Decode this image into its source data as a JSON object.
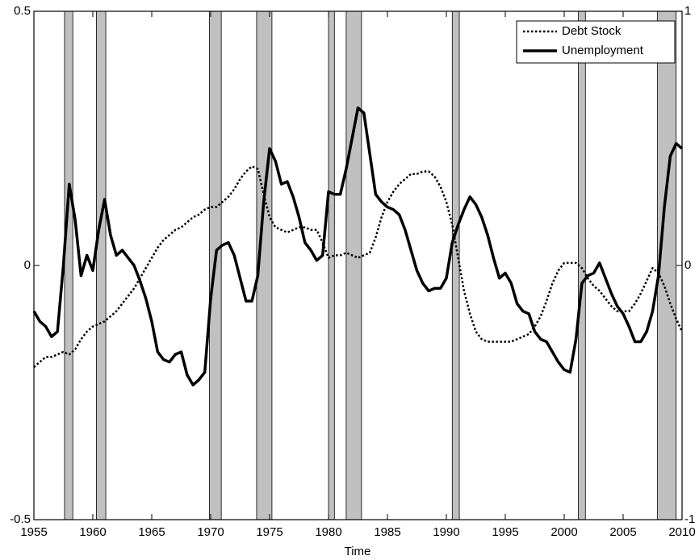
{
  "chart_data": {
    "type": "line",
    "xlabel": "Time",
    "xlim": [
      1955,
      2010
    ],
    "xticks": [
      1955,
      1960,
      1965,
      1970,
      1975,
      1980,
      1985,
      1990,
      1995,
      2000,
      2005,
      2010
    ],
    "ylim": [
      -0.5,
      0.5
    ],
    "yticks": [
      -0.5,
      0,
      0.5
    ],
    "y2lim": [
      -1,
      1
    ],
    "y2ticks": [
      -1,
      0,
      1
    ],
    "legend": "upper right",
    "shade_color": "#c0c0c0",
    "shaded_periods": [
      [
        1957.6,
        1958.3
      ],
      [
        1960.3,
        1961.1
      ],
      [
        1969.9,
        1970.9
      ],
      [
        1973.9,
        1975.2
      ],
      [
        1980.0,
        1980.5
      ],
      [
        1981.5,
        1982.8
      ],
      [
        1990.5,
        1991.1
      ],
      [
        2001.2,
        2001.8
      ],
      [
        2007.9,
        2009.5
      ]
    ],
    "x": [
      1955,
      1955.5,
      1956,
      1956.5,
      1957,
      1957.5,
      1958,
      1958.5,
      1959,
      1959.5,
      1960,
      1960.5,
      1961,
      1961.5,
      1962,
      1962.5,
      1963,
      1963.5,
      1964,
      1964.5,
      1965,
      1965.5,
      1966,
      1966.5,
      1967,
      1967.5,
      1968,
      1968.5,
      1969,
      1969.5,
      1970,
      1970.5,
      1971,
      1971.5,
      1972,
      1972.5,
      1973,
      1973.5,
      1974,
      1974.5,
      1975,
      1975.5,
      1976,
      1976.5,
      1977,
      1977.5,
      1978,
      1978.5,
      1979,
      1979.5,
      1980,
      1980.5,
      1981,
      1981.5,
      1982,
      1982.5,
      1983,
      1983.5,
      1984,
      1984.5,
      1985,
      1985.5,
      1986,
      1986.5,
      1987,
      1987.5,
      1988,
      1988.5,
      1989,
      1989.5,
      1990,
      1990.5,
      1991,
      1991.5,
      1992,
      1992.5,
      1993,
      1993.5,
      1994,
      1994.5,
      1995,
      1995.5,
      1996,
      1996.5,
      1997,
      1997.5,
      1998,
      1998.5,
      1999,
      1999.5,
      2000,
      2000.5,
      2001,
      2001.5,
      2002,
      2002.5,
      2003,
      2003.5,
      2004,
      2004.5,
      2005,
      2005.5,
      2006,
      2006.5,
      2007,
      2007.5,
      2008,
      2008.5,
      2009,
      2009.5,
      2010
    ],
    "series": [
      {
        "name": "Debt Stock",
        "color": "#000000",
        "style": "dotted",
        "width": 2.5,
        "axis": "y2",
        "values": [
          -0.4,
          -0.38,
          -0.36,
          -0.36,
          -0.35,
          -0.34,
          -0.35,
          -0.33,
          -0.29,
          -0.26,
          -0.24,
          -0.23,
          -0.22,
          -0.2,
          -0.18,
          -0.15,
          -0.12,
          -0.09,
          -0.05,
          -0.01,
          0.03,
          0.07,
          0.1,
          0.12,
          0.14,
          0.15,
          0.17,
          0.19,
          0.2,
          0.22,
          0.23,
          0.23,
          0.25,
          0.27,
          0.3,
          0.34,
          0.37,
          0.39,
          0.38,
          0.28,
          0.19,
          0.15,
          0.14,
          0.13,
          0.14,
          0.15,
          0.15,
          0.14,
          0.14,
          0.09,
          0.03,
          0.04,
          0.04,
          0.05,
          0.04,
          0.03,
          0.04,
          0.05,
          0.11,
          0.19,
          0.25,
          0.29,
          0.32,
          0.34,
          0.36,
          0.36,
          0.37,
          0.37,
          0.35,
          0.31,
          0.25,
          0.16,
          0.03,
          -0.1,
          -0.19,
          -0.26,
          -0.29,
          -0.3,
          -0.3,
          -0.3,
          -0.3,
          -0.3,
          -0.29,
          -0.28,
          -0.27,
          -0.24,
          -0.2,
          -0.14,
          -0.07,
          -0.02,
          0.01,
          0.01,
          0.01,
          -0.01,
          -0.05,
          -0.08,
          -0.1,
          -0.13,
          -0.16,
          -0.18,
          -0.18,
          -0.18,
          -0.15,
          -0.11,
          -0.06,
          -0.01,
          -0.03,
          -0.08,
          -0.15,
          -0.21,
          -0.26
        ]
      },
      {
        "name": "Unemployment",
        "color": "#000000",
        "style": "solid",
        "width": 3.5,
        "values": [
          -0.09,
          -0.11,
          -0.12,
          -0.14,
          -0.13,
          0,
          0.16,
          0.09,
          -0.02,
          0.02,
          -0.01,
          0.07,
          0.13,
          0.06,
          0.02,
          0.03,
          0.015,
          0,
          -0.03,
          -0.065,
          -0.11,
          -0.17,
          -0.185,
          -0.19,
          -0.175,
          -0.17,
          -0.215,
          -0.235,
          -0.225,
          -0.21,
          -0.065,
          0.03,
          0.04,
          0.045,
          0.02,
          -0.025,
          -0.07,
          -0.07,
          -0.02,
          0.125,
          0.23,
          0.205,
          0.16,
          0.165,
          0.135,
          0.095,
          0.045,
          0.03,
          0.01,
          0.02,
          0.145,
          0.14,
          0.14,
          0.19,
          0.25,
          0.31,
          0.3,
          0.22,
          0.14,
          0.125,
          0.115,
          0.11,
          0.1,
          0.07,
          0.03,
          -0.01,
          -0.035,
          -0.05,
          -0.045,
          -0.045,
          -0.025,
          0.045,
          0.08,
          0.11,
          0.135,
          0.12,
          0.095,
          0.06,
          0.015,
          -0.025,
          -0.015,
          -0.035,
          -0.075,
          -0.09,
          -0.095,
          -0.13,
          -0.145,
          -0.15,
          -0.17,
          -0.19,
          -0.205,
          -0.21,
          -0.145,
          -0.035,
          -0.02,
          -0.015,
          0.005,
          -0.025,
          -0.055,
          -0.08,
          -0.095,
          -0.12,
          -0.15,
          -0.15,
          -0.13,
          -0.09,
          -0.02,
          0.115,
          0.215,
          0.24,
          0.23
        ]
      }
    ]
  }
}
